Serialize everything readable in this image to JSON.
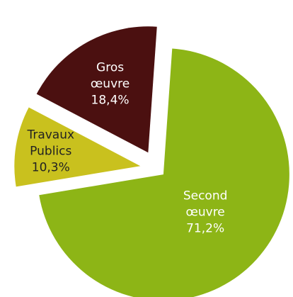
{
  "chart_data": {
    "type": "pie",
    "categories": [
      "Second œuvre",
      "Travaux Publics",
      "Gros œuvre"
    ],
    "values": [
      71.2,
      10.3,
      18.4
    ],
    "value_labels": [
      "71,2%",
      "10,3%",
      "18,4%"
    ],
    "colors": [
      "#8db516",
      "#c9c11e",
      "#4b1010"
    ]
  }
}
